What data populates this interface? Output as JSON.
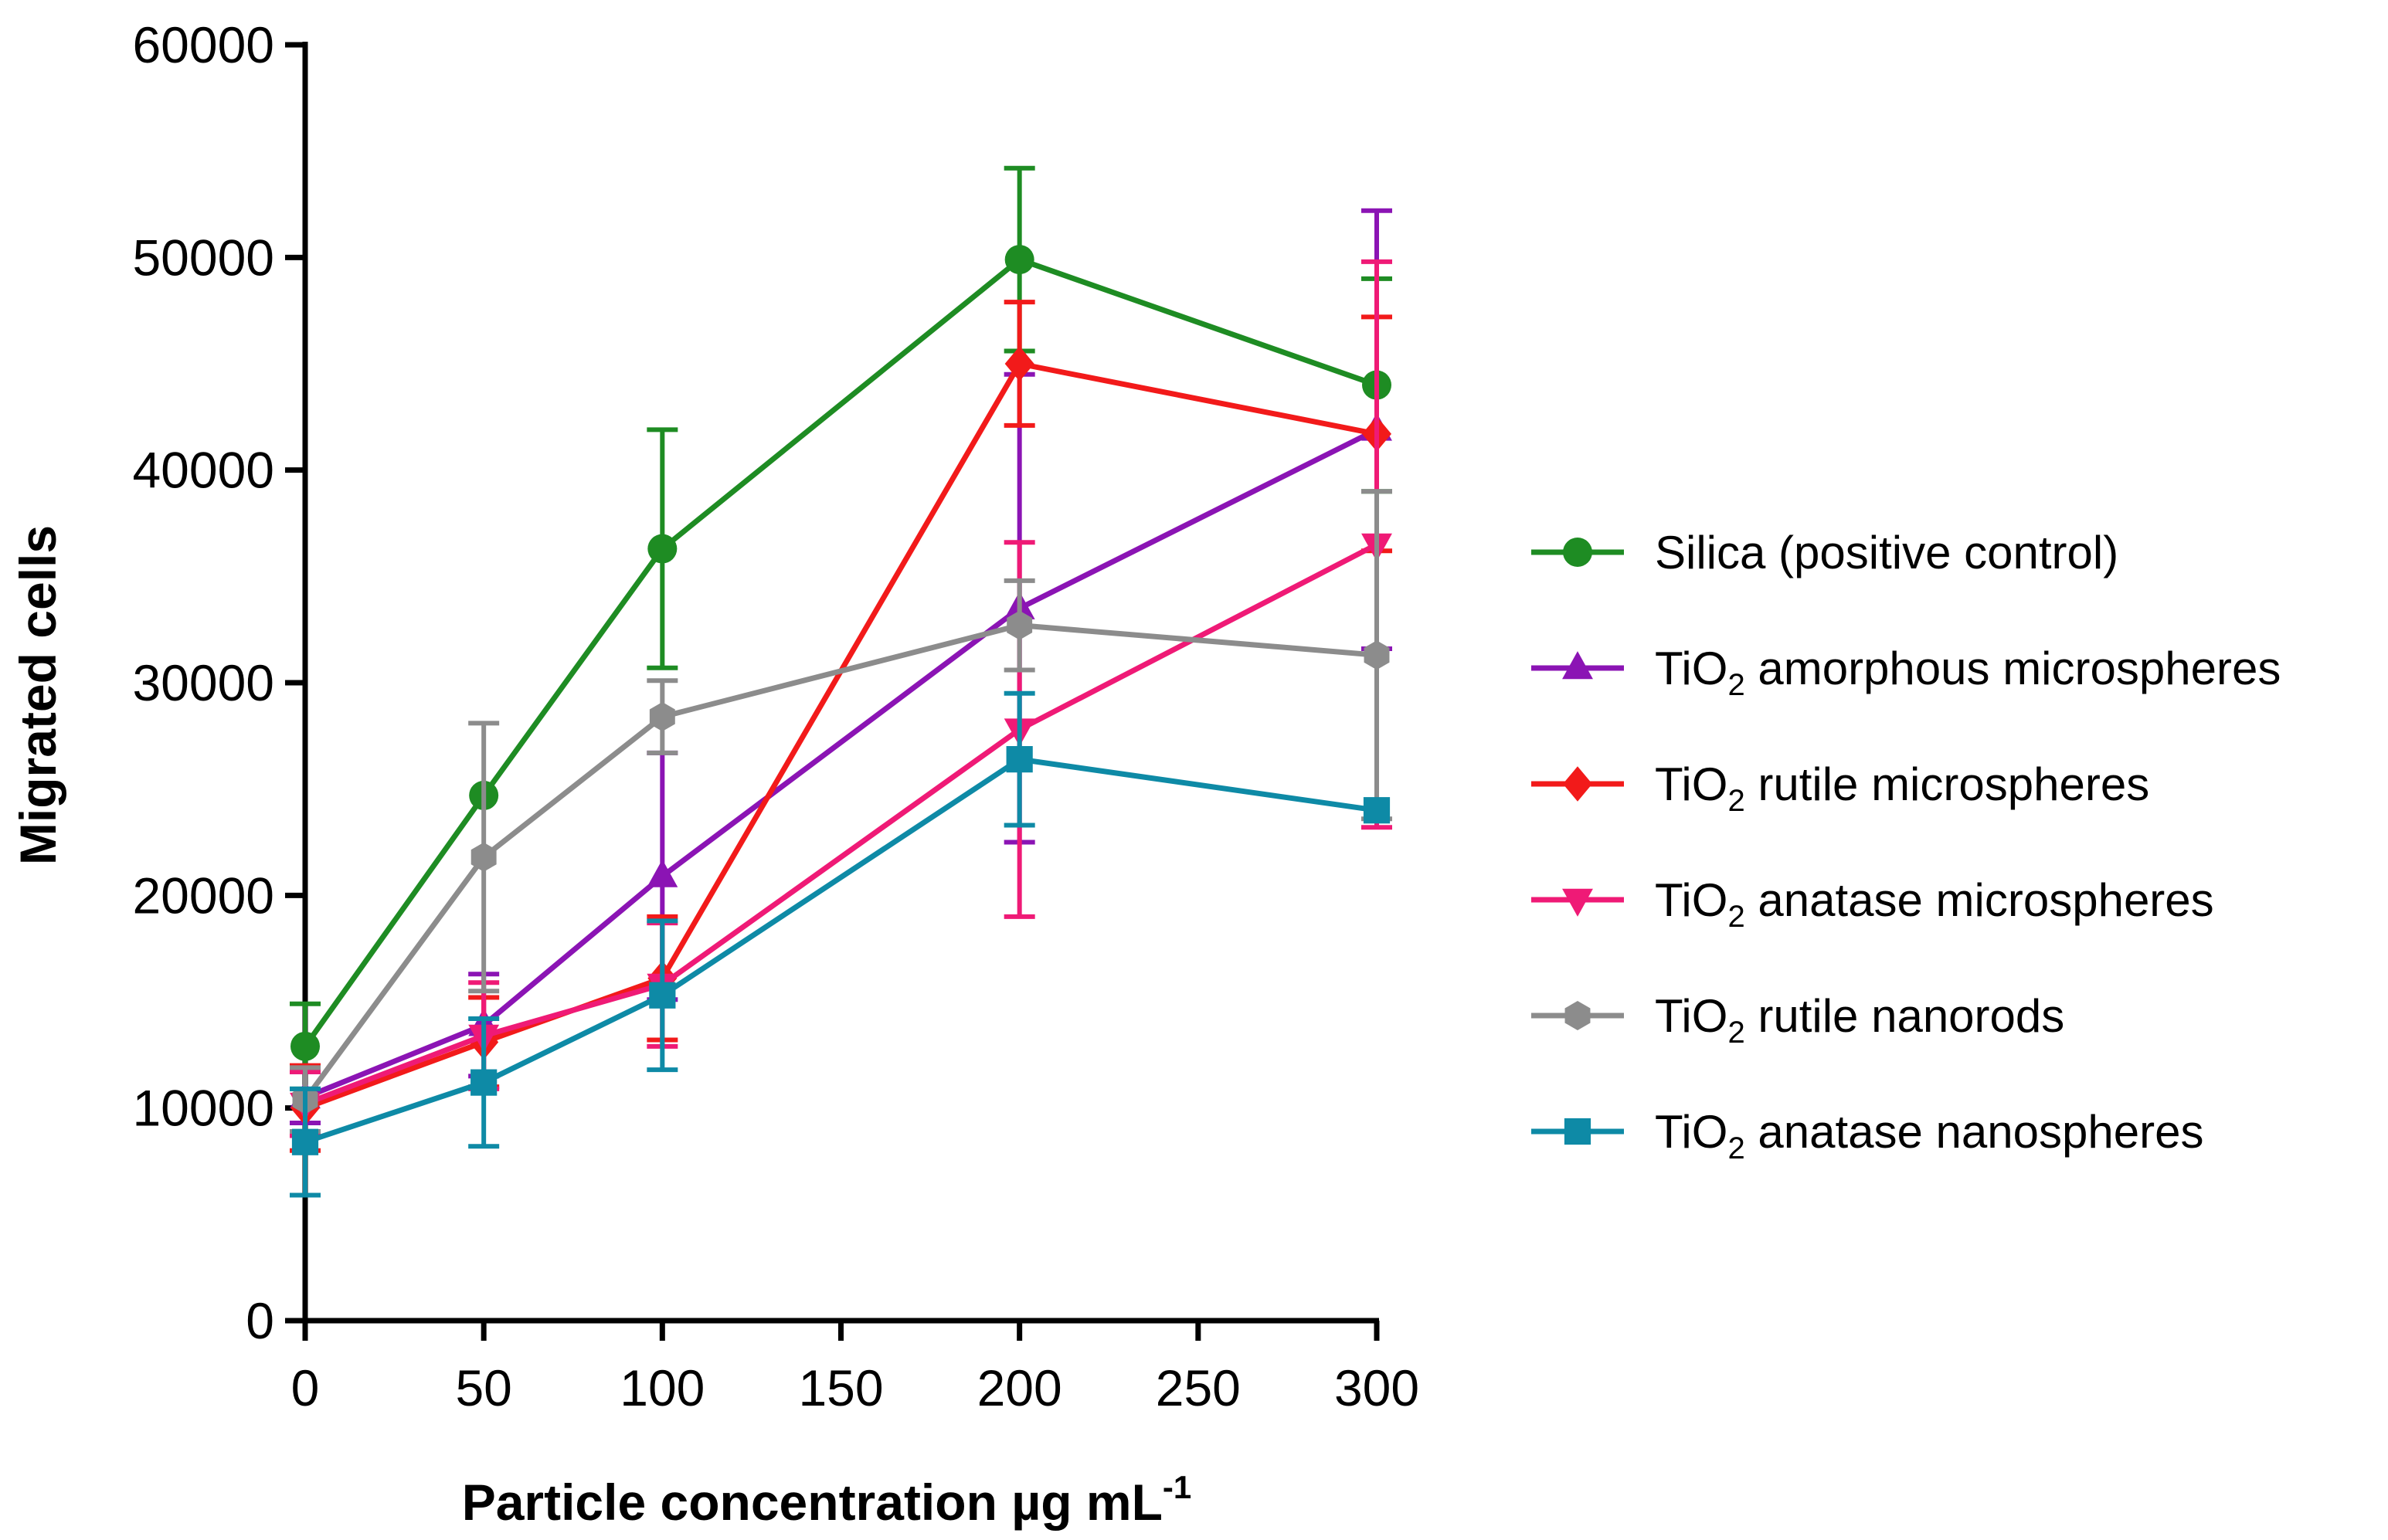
{
  "chart_data": {
    "type": "line",
    "title": "",
    "xlabel": "Particle concentration µg mL",
    "xlabel_superscript": "-1",
    "ylabel": "Migrated cells",
    "x": [
      0,
      50,
      100,
      200,
      300
    ],
    "xlim": [
      0,
      300
    ],
    "ylim": [
      0,
      60000
    ],
    "xticks": [
      0,
      50,
      100,
      150,
      200,
      250,
      300
    ],
    "yticks": [
      0,
      10000,
      20000,
      30000,
      40000,
      50000,
      60000
    ],
    "xtick_labels": [
      "0",
      "50",
      "100",
      "150",
      "200",
      "250",
      "300"
    ],
    "ytick_labels": [
      "0",
      "10000",
      "20000",
      "30000",
      "40000",
      "50000",
      "60000"
    ],
    "grid": false,
    "legend_position": "right",
    "series": [
      {
        "name": "Silica (positive control)",
        "label_prefix": "Silica (positive control)",
        "label_sub": "",
        "label_suffix": "",
        "color": "#1e8c23",
        "marker": "circle",
        "values": [
          12900,
          24700,
          36300,
          49900,
          44000
        ],
        "errors": [
          2000,
          0,
          5600,
          4300,
          5000
        ]
      },
      {
        "name": "TiO2 amorphous microspheres",
        "label_prefix": "TiO",
        "label_sub": "2",
        "label_suffix": " amorphous microspheres",
        "color": "#8b14b4",
        "marker": "triangle-up",
        "values": [
          10500,
          13900,
          20900,
          33500,
          41900
        ],
        "errors": [
          1200,
          2400,
          5800,
          11000,
          10300
        ]
      },
      {
        "name": "TiO2 rutile microspheres",
        "label_prefix": "TiO",
        "label_sub": "2",
        "label_suffix": " rutile microspheres",
        "color": "#f21a1a",
        "marker": "diamond",
        "values": [
          10000,
          13100,
          16100,
          45000,
          41700
        ],
        "errors": [
          2000,
          2100,
          2900,
          2900,
          5500
        ]
      },
      {
        "name": "TiO2 anatase microspheres",
        "label_prefix": "TiO",
        "label_sub": "2",
        "label_suffix": " anatase microspheres",
        "color": "#ef1a76",
        "marker": "triangle-down",
        "values": [
          10200,
          13400,
          15800,
          27800,
          36500
        ],
        "errors": [
          1500,
          2500,
          2900,
          8800,
          13300
        ]
      },
      {
        "name": "TiO2 rutile nanorods",
        "label_prefix": "TiO",
        "label_sub": "2",
        "label_suffix": " rutile nanorods",
        "color": "#8c8c8c",
        "marker": "hexagon",
        "values": [
          10400,
          21800,
          28400,
          32700,
          31300
        ],
        "errors": [
          1500,
          6300,
          1700,
          2100,
          7700
        ]
      },
      {
        "name": "TiO2 anatase nanospheres",
        "label_prefix": "TiO",
        "label_sub": "2",
        "label_suffix": "  anatase nanospheres",
        "color": "#0e8aa6",
        "marker": "square",
        "values": [
          8400,
          11200,
          15300,
          26400,
          24000
        ],
        "errors": [
          2500,
          3000,
          3500,
          3100,
          0
        ]
      }
    ]
  }
}
